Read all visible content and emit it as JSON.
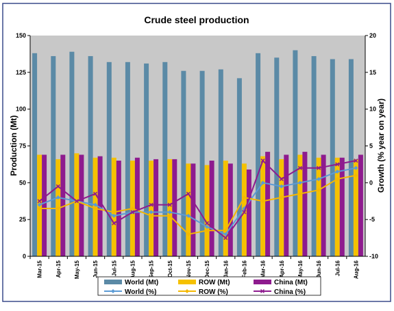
{
  "chart_data": {
    "type": "bar",
    "title": "Crude steel production",
    "ylabel": "Production (Mt)",
    "y2label": "Growth (% year on year)",
    "ylim": [
      0,
      150
    ],
    "y2lim": [
      -10,
      20
    ],
    "yticks": [
      "0",
      "25",
      "50",
      "75",
      "100",
      "125",
      "150"
    ],
    "y2ticks": [
      "-10",
      "-5",
      "0",
      "5",
      "10",
      "15",
      "20"
    ],
    "grid": false,
    "legend_position": "bottom",
    "categories": [
      "Mar-15",
      "Apr-15",
      "May-15",
      "Jun-15",
      "Jul-15",
      "Aug-15",
      "Sep-15",
      "Oct-15",
      "Nov-15",
      "Dec-15",
      "Jan-16",
      "Feb-16",
      "Mar-16",
      "Apr-16",
      "May-16",
      "Jun-16",
      "Jul-16",
      "Aug-16"
    ],
    "bar_series": [
      {
        "name": "World (Mt)",
        "color": "#5b8aa6",
        "values": [
          138,
          136,
          139,
          136,
          132,
          132,
          131,
          132,
          126,
          126,
          127,
          121,
          138,
          135,
          140,
          136,
          134,
          134
        ]
      },
      {
        "name": "ROW (Mt)",
        "color": "#f5c100",
        "values": [
          69,
          66,
          70,
          67,
          67,
          65,
          65,
          66,
          63,
          62,
          65,
          63,
          68,
          66,
          69,
          67,
          67,
          66
        ]
      },
      {
        "name": "China (Mt)",
        "color": "#8e1b8e",
        "values": [
          69,
          69,
          69,
          68,
          65,
          67,
          66,
          66,
          63,
          65,
          63,
          59,
          71,
          69,
          71,
          69,
          67,
          69
        ]
      }
    ],
    "line_series": [
      {
        "name": "World (%)",
        "color": "#5b9bd5",
        "marker": "diamond",
        "values": [
          -3,
          -2,
          -2.5,
          -3,
          -4.5,
          -4,
          -4,
          -4,
          -4.5,
          -6,
          -7,
          -3.5,
          0,
          -0.5,
          0,
          0.5,
          1.5,
          2
        ]
      },
      {
        "name": "ROW (%)",
        "color": "#f5b800",
        "marker": "diamond",
        "values": [
          -3.5,
          -3.5,
          -2.5,
          -3.5,
          -4,
          -3.5,
          -4.5,
          -4.5,
          -7,
          -6.5,
          -6.5,
          -2,
          -2.5,
          -2,
          -1.5,
          -1,
          0.5,
          1
        ]
      },
      {
        "name": "China (%)",
        "color": "#8e1b8e",
        "marker": "cross",
        "values": [
          -2.5,
          -0.5,
          -2.5,
          -1.5,
          -5.5,
          -4,
          -3,
          -3,
          -1.5,
          -5.5,
          -7.5,
          -4,
          3,
          0.5,
          2,
          2,
          2.5,
          3
        ]
      }
    ]
  }
}
